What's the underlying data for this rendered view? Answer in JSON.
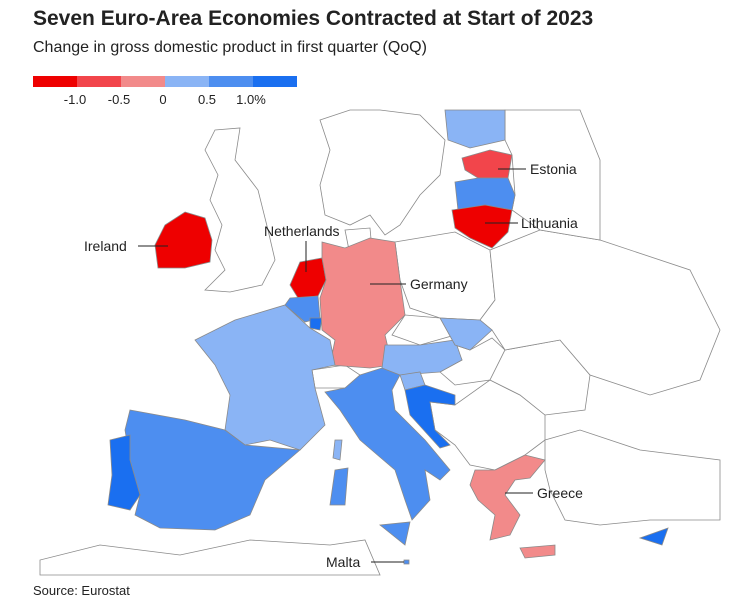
{
  "title": "Seven Euro-Area Economies Contracted at Start of 2023",
  "subtitle": "Change in gross domestic product in first quarter (QoQ)",
  "legend": {
    "colors": [
      "#ee0000",
      "#f2454b",
      "#f28a8a",
      "#8ab4f5",
      "#4d8ef0",
      "#1a6ff0"
    ],
    "ticks": [
      {
        "value": -1,
        "label": "-1.0"
      },
      {
        "value": -0.5,
        "label": "-0.5"
      },
      0,
      0.5,
      {
        "value": 1,
        "label": "1.0%"
      }
    ]
  },
  "annotations": [
    "Ireland",
    "Netherlands",
    "Estonia",
    "Lithuania",
    "Germany",
    "Greece",
    "Malta"
  ],
  "source": "Source: Eurostat"
}
